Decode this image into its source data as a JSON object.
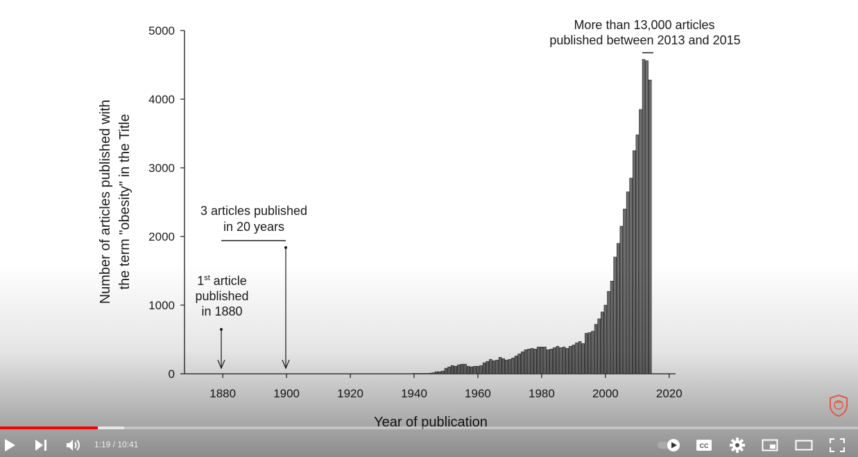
{
  "chart_data": {
    "type": "bar",
    "title": "",
    "xlabel": "Year of publication",
    "ylabel_lines": [
      "Number of articles published with",
      "the term \"obesity\" in the Title"
    ],
    "xlim": [
      1868,
      2022
    ],
    "ylim": [
      0,
      5000
    ],
    "xticks": [
      1880,
      1900,
      1920,
      1940,
      1960,
      1980,
      2000,
      2020
    ],
    "yticks": [
      0,
      1000,
      2000,
      3000,
      4000,
      5000
    ],
    "grid": false,
    "x": [
      1940,
      1941,
      1942,
      1943,
      1944,
      1945,
      1946,
      1947,
      1948,
      1949,
      1950,
      1951,
      1952,
      1953,
      1954,
      1955,
      1956,
      1957,
      1958,
      1959,
      1960,
      1961,
      1962,
      1963,
      1964,
      1965,
      1966,
      1967,
      1968,
      1969,
      1970,
      1971,
      1972,
      1973,
      1974,
      1975,
      1976,
      1977,
      1978,
      1979,
      1980,
      1981,
      1982,
      1983,
      1984,
      1985,
      1986,
      1987,
      1988,
      1989,
      1990,
      1991,
      1992,
      1993,
      1994,
      1995,
      1996,
      1997,
      1998,
      1999,
      2000,
      2001,
      2002,
      2003,
      2004,
      2005,
      2006,
      2007,
      2008,
      2009,
      2010,
      2011,
      2012,
      2013,
      2014,
      2015
    ],
    "values": [
      5,
      5,
      5,
      5,
      5,
      8,
      15,
      30,
      30,
      40,
      80,
      100,
      120,
      110,
      130,
      140,
      140,
      110,
      100,
      110,
      110,
      120,
      160,
      180,
      210,
      190,
      200,
      240,
      220,
      200,
      210,
      230,
      260,
      290,
      320,
      350,
      360,
      370,
      360,
      390,
      390,
      390,
      350,
      360,
      380,
      400,
      380,
      390,
      370,
      400,
      420,
      450,
      470,
      440,
      590,
      600,
      620,
      720,
      800,
      900,
      1000,
      1200,
      1350,
      1700,
      1900,
      2150,
      2400,
      2650,
      2850,
      3250,
      3480,
      3850,
      4580,
      4560,
      4280,
      0
    ],
    "annotations": {
      "first_article_line1": "1",
      "first_article_sup": "st",
      "first_article_line1_rest": " article",
      "first_article_line2": "published",
      "first_article_line3": "in 1880",
      "three_articles_line1": "3 articles published",
      "three_articles_line2": "in 20 years",
      "top_line1": "More than 13,000 articles",
      "top_line2": "published between 2013 and 2015"
    }
  },
  "player": {
    "current_time": "1:19",
    "separator": " / ",
    "duration": "10:41",
    "progress_fraction": 0.114,
    "buffered_fraction": 0.145,
    "accent_color": "#ff0000",
    "icons": [
      "play-icon",
      "next-icon",
      "volume-icon",
      "autoplay-toggle-icon",
      "captions-icon",
      "settings-icon",
      "miniplayer-icon",
      "theater-icon",
      "fullscreen-icon"
    ],
    "cc_label": "CC"
  }
}
